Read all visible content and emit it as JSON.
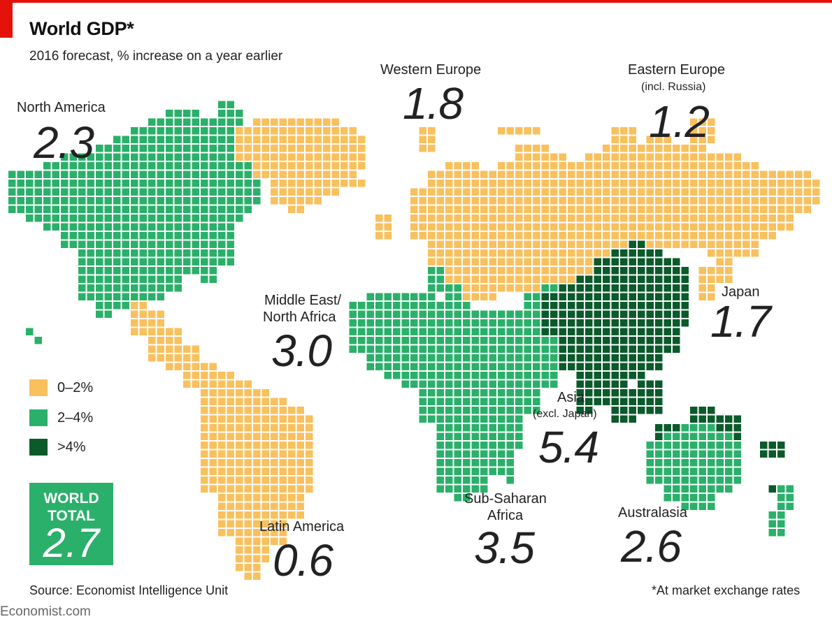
{
  "title": "World GDP*",
  "subtitle": "2016 forecast, % increase on a year earlier",
  "colors": {
    "low": "#f9c05e",
    "mid": "#2ab06a",
    "high": "#0b5a2c",
    "accent": "#e3120b"
  },
  "regions": {
    "north_america": {
      "name": "North America",
      "value": "2.3",
      "category": "2-4%"
    },
    "western_europe": {
      "name": "Western Europe",
      "value": "1.8",
      "category": "0-2%"
    },
    "eastern_europe": {
      "name": "Eastern Europe",
      "note": "(incl. Russia)",
      "value": "1.2",
      "category": "0-2%"
    },
    "middle_east": {
      "name1": "Middle East/",
      "name2": "North Africa",
      "value": "3.0",
      "category": "2-4%"
    },
    "japan": {
      "name": "Japan",
      "value": "1.7",
      "category": "0-2%"
    },
    "asia": {
      "name": "Asia",
      "note": "(excl. Japan)",
      "value": "5.4",
      "category": ">4%"
    },
    "latin_america": {
      "name": "Latin America",
      "value": "0.6",
      "category": "0-2%"
    },
    "sub_saharan": {
      "name1": "Sub-Saharan",
      "name2": "Africa",
      "value": "3.5",
      "category": "2-4%"
    },
    "australasia": {
      "name": "Australasia",
      "value": "2.6",
      "category": "2-4%"
    }
  },
  "legend": {
    "low": "0–2%",
    "mid": "2–4%",
    "high": ">4%"
  },
  "world_total": {
    "label1": "WORLD",
    "label2": "TOTAL",
    "value": "2.7"
  },
  "source": "Source: Economist Intelligence Unit",
  "footnote": "*At market exchange rates",
  "brand": "Economist.com"
}
